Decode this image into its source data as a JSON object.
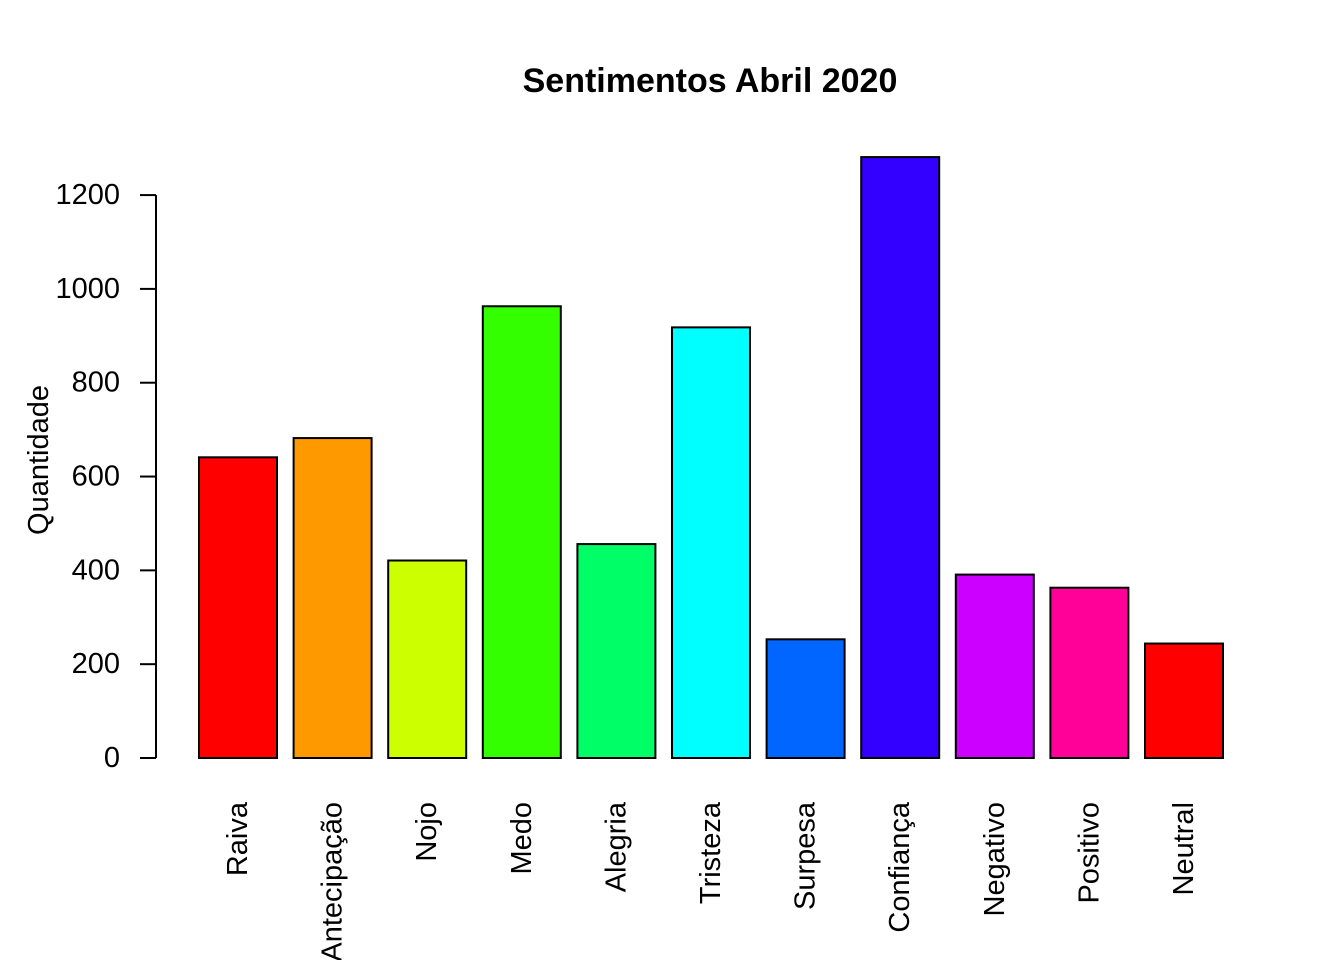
{
  "chart_data": {
    "type": "bar",
    "title": "Sentimentos Abril 2020",
    "xlabel": "",
    "ylabel": "Quantidade",
    "ylim": [
      0,
      1300
    ],
    "yticks": [
      0,
      200,
      400,
      600,
      800,
      1000,
      1200
    ],
    "grid": false,
    "legend": "none",
    "categories": [
      "Raiva",
      "Antecipação",
      "Nojo",
      "Medo",
      "Alegria",
      "Tristeza",
      "Surpesa",
      "Confiança",
      "Negativo",
      "Positivo",
      "Neutral"
    ],
    "values": [
      641,
      682,
      421,
      963,
      456,
      918,
      253,
      1281,
      391,
      363,
      244
    ],
    "colors": [
      "#FF0000",
      "#FF9900",
      "#CCFF00",
      "#33FF00",
      "#00FF66",
      "#00FFFF",
      "#0066FF",
      "#3300FF",
      "#CC00FF",
      "#FF0099",
      "#FF0000"
    ]
  }
}
